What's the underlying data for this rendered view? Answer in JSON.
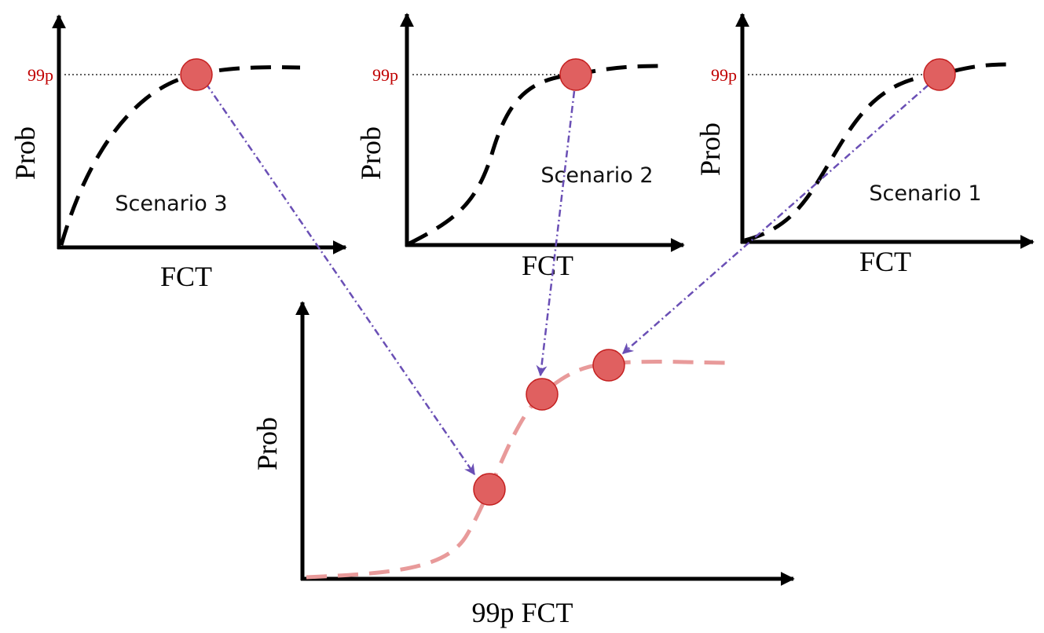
{
  "panels": [
    {
      "percentile_label": "99p",
      "y_label": "Prob",
      "x_label": "FCT",
      "scenario": "Scenario 3"
    },
    {
      "percentile_label": "99p",
      "y_label": "Prob",
      "x_label": "FCT",
      "scenario": "Scenario 2"
    },
    {
      "percentile_label": "99p",
      "y_label": "Prob",
      "x_label": "FCT",
      "scenario": "Scenario 1"
    }
  ],
  "result": {
    "y_label": "Prob",
    "x_label": "99p FCT"
  }
}
